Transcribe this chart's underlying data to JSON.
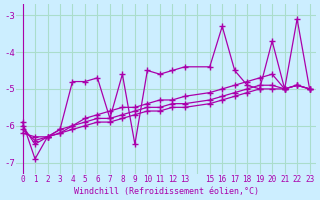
{
  "bg_color": "#cceeff",
  "grid_color": "#aaddcc",
  "line_color": "#aa00aa",
  "xlabel": "Windchill (Refroidissement éolien,°C)",
  "xlim": [
    -0.5,
    23.5
  ],
  "ylim": [
    -7.3,
    -2.7
  ],
  "yticks": [
    -7,
    -6,
    -5,
    -4,
    -3
  ],
  "xticks": [
    0,
    1,
    2,
    3,
    4,
    5,
    6,
    7,
    8,
    9,
    10,
    11,
    12,
    13,
    14,
    15,
    16,
    17,
    18,
    19,
    20,
    21,
    22,
    23
  ],
  "xtick_labels": [
    "0",
    "1",
    "2",
    "3",
    "4",
    "5",
    "6",
    "7",
    "8",
    "9",
    "10",
    "11",
    "12",
    "13",
    "",
    "15",
    "16",
    "17",
    "18",
    "19",
    "20",
    "21",
    "22",
    "23"
  ],
  "series": [
    {
      "x": [
        0,
        1,
        2,
        3,
        4,
        5,
        6,
        7,
        8,
        9,
        10,
        11,
        12,
        13,
        15,
        16,
        17,
        18,
        19,
        20,
        21,
        22,
        23
      ],
      "y": [
        -5.9,
        -6.9,
        -6.3,
        -6.1,
        -4.8,
        -4.8,
        -4.7,
        -5.8,
        -4.6,
        -6.5,
        -4.5,
        -4.6,
        -4.5,
        -4.4,
        -4.4,
        -3.3,
        -4.5,
        -4.9,
        -5.0,
        -3.7,
        -5.0,
        -3.1,
        -5.0
      ]
    },
    {
      "x": [
        0,
        1,
        2,
        3,
        4,
        5,
        6,
        7,
        8,
        9,
        10,
        11,
        12,
        13,
        15,
        16,
        17,
        18,
        19,
        20,
        21,
        22,
        23
      ],
      "y": [
        -6.0,
        -6.5,
        -6.3,
        -6.1,
        -6.0,
        -5.8,
        -5.7,
        -5.6,
        -5.5,
        -5.5,
        -5.4,
        -5.3,
        -5.3,
        -5.2,
        -5.1,
        -5.0,
        -4.9,
        -4.8,
        -4.7,
        -4.6,
        -5.0,
        -4.9,
        -5.0
      ]
    },
    {
      "x": [
        0,
        1,
        2,
        3,
        4,
        5,
        6,
        7,
        8,
        9,
        10,
        11,
        12,
        13,
        15,
        16,
        17,
        18,
        19,
        20,
        21,
        22,
        23
      ],
      "y": [
        -6.1,
        -6.4,
        -6.3,
        -6.2,
        -6.0,
        -5.9,
        -5.8,
        -5.8,
        -5.7,
        -5.6,
        -5.5,
        -5.5,
        -5.4,
        -5.4,
        -5.3,
        -5.2,
        -5.1,
        -5.0,
        -4.9,
        -4.9,
        -5.0,
        -4.9,
        -5.0
      ]
    },
    {
      "x": [
        0,
        1,
        2,
        3,
        4,
        5,
        6,
        7,
        8,
        9,
        10,
        11,
        12,
        13,
        15,
        16,
        17,
        18,
        19,
        20,
        21,
        22,
        23
      ],
      "y": [
        -6.2,
        -6.3,
        -6.3,
        -6.2,
        -6.1,
        -6.0,
        -5.9,
        -5.9,
        -5.8,
        -5.7,
        -5.6,
        -5.6,
        -5.5,
        -5.5,
        -5.4,
        -5.3,
        -5.2,
        -5.1,
        -5.0,
        -5.0,
        -5.0,
        -4.9,
        -5.0
      ]
    }
  ]
}
